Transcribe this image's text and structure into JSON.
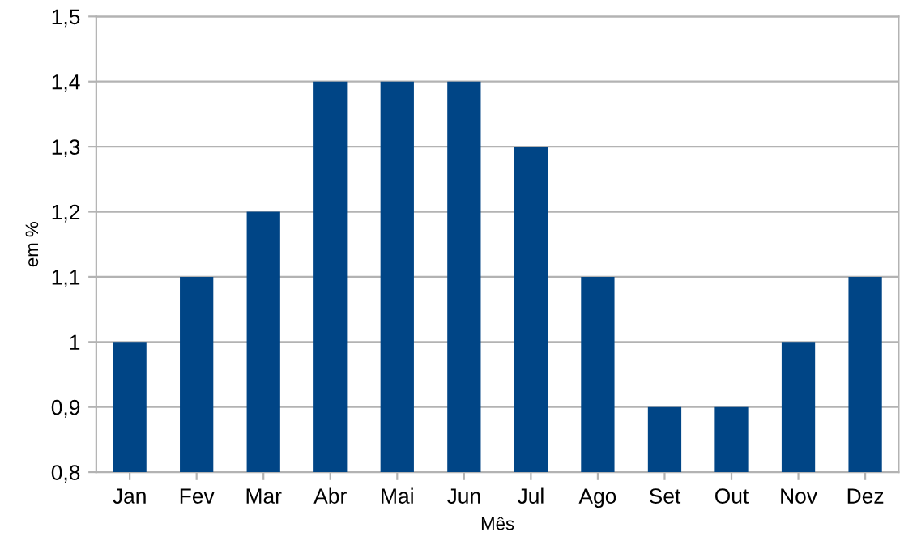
{
  "chart_data": {
    "type": "bar",
    "xlabel": "Mês",
    "ylabel": "em %",
    "categories": [
      "Jan",
      "Fev",
      "Mar",
      "Abr",
      "Mai",
      "Jun",
      "Jul",
      "Ago",
      "Set",
      "Out",
      "Nov",
      "Dez"
    ],
    "values": [
      1.0,
      1.1,
      1.2,
      1.4,
      1.4,
      1.4,
      1.3,
      1.1,
      0.9,
      0.9,
      1.0,
      1.1
    ],
    "color": "#004586",
    "ylim": [
      0.8,
      1.5
    ],
    "yticks": [
      {
        "value": 0.8,
        "label": "0,8"
      },
      {
        "value": 0.9,
        "label": "0,9"
      },
      1,
      {
        "value": 1.1,
        "label": "1,1"
      },
      {
        "value": 1.2,
        "label": "1,2"
      },
      {
        "value": 1.3,
        "label": "1,3"
      },
      {
        "value": 1.4,
        "label": "1,4"
      },
      {
        "value": 1.5,
        "label": "1,5"
      }
    ],
    "grid": "y",
    "legend": false
  }
}
